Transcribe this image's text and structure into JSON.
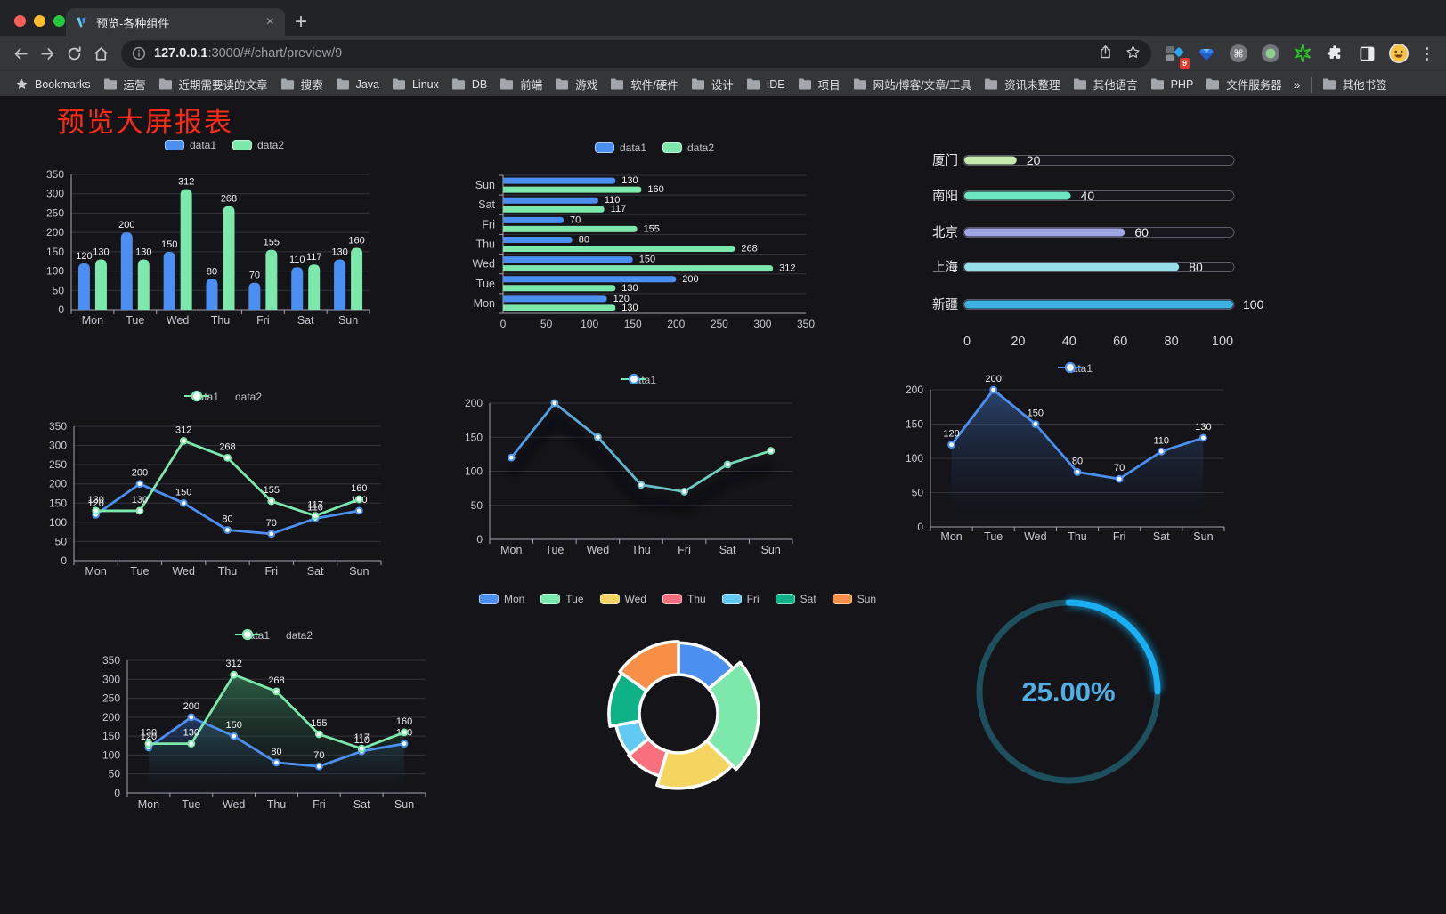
{
  "browser": {
    "traffic_lights": [
      "#ff5f57",
      "#febc2e",
      "#28c840"
    ],
    "tab": {
      "title": "预览-各种组件",
      "close": "×"
    },
    "new_tab": "+",
    "omnibox": {
      "host": "127.0.0.1",
      "path": ":3000/#/chart/preview/9"
    },
    "extensions_badge": "9",
    "bookmarks": {
      "label": "Bookmarks",
      "folders": [
        "运营",
        "近期需要读的文章",
        "搜索",
        "Java",
        "Linux",
        "DB",
        "前端",
        "游戏",
        "软件/硬件",
        "设计",
        "IDE",
        "项目",
        "网站/博客/文章/工具",
        "资讯未整理",
        "其他语言",
        "PHP",
        "文件服务器"
      ],
      "overflow": "»",
      "other": "其他书签"
    }
  },
  "page": {
    "title": "预览大屏报表",
    "title_color": "#fb2b16",
    "background": "#141419"
  },
  "chart_data": [
    {
      "id": "grouped-bar",
      "type": "bar",
      "legend_position": "top",
      "grid": true,
      "value_labels": true,
      "categories": [
        "Mon",
        "Tue",
        "Wed",
        "Thu",
        "Fri",
        "Sat",
        "Sun"
      ],
      "series": [
        {
          "name": "data1",
          "color": "#4b90f0",
          "values": [
            120,
            200,
            150,
            80,
            70,
            110,
            130
          ]
        },
        {
          "name": "data2",
          "color": "#7ce8ab",
          "values": [
            130,
            130,
            312,
            268,
            155,
            117,
            160
          ]
        }
      ],
      "ylim": [
        0,
        350
      ],
      "yticks": [
        0,
        50,
        100,
        150,
        200,
        250,
        300,
        350
      ]
    },
    {
      "id": "horizontal-bar",
      "type": "bar",
      "orientation": "horizontal",
      "legend_position": "top",
      "value_labels": true,
      "categories": [
        "Mon",
        "Tue",
        "Wed",
        "Thu",
        "Fri",
        "Sat",
        "Sun"
      ],
      "display_order": "Sun-first",
      "series": [
        {
          "name": "data1",
          "color": "#4b90f0",
          "values": [
            120,
            200,
            150,
            80,
            70,
            110,
            130
          ]
        },
        {
          "name": "data2",
          "color": "#7ce8ab",
          "values": [
            130,
            130,
            312,
            268,
            155,
            117,
            160
          ]
        }
      ],
      "xlim": [
        0,
        350
      ],
      "xticks": [
        0,
        50,
        100,
        150,
        200,
        250,
        300,
        350
      ]
    },
    {
      "id": "progress-bar-list",
      "type": "bar",
      "subtype": "rounded-progress",
      "value_labels": true,
      "categories": [
        "厦门",
        "南阳",
        "北京",
        "上海",
        "新疆"
      ],
      "values": [
        20,
        40,
        60,
        80,
        100
      ],
      "colors": [
        "#c4ebad",
        "#6be6c1",
        "#a0a7e6",
        "#96dee8",
        "#3fb1e3"
      ],
      "xlim": [
        0,
        100
      ],
      "xticks": [
        0,
        20,
        40,
        60,
        80,
        100
      ]
    },
    {
      "id": "two-line",
      "type": "line",
      "legend_position": "top",
      "grid": true,
      "value_labels": true,
      "categories": [
        "Mon",
        "Tue",
        "Wed",
        "Thu",
        "Fri",
        "Sat",
        "Sun"
      ],
      "series": [
        {
          "name": "data1",
          "color": "#4b90f0",
          "values": [
            120,
            200,
            150,
            80,
            70,
            110,
            130
          ]
        },
        {
          "name": "data2",
          "color": "#7ce8ab",
          "values": [
            130,
            130,
            312,
            268,
            155,
            117,
            160
          ]
        }
      ],
      "ylim": [
        0,
        350
      ],
      "yticks": [
        0,
        50,
        100,
        150,
        200,
        250,
        300,
        350
      ]
    },
    {
      "id": "gradient-line",
      "type": "line",
      "legend_position": "top",
      "grid": true,
      "value_labels": false,
      "categories": [
        "Mon",
        "Tue",
        "Wed",
        "Thu",
        "Fri",
        "Sat",
        "Sun"
      ],
      "series": [
        {
          "name": "data1",
          "gradient": [
            "#4b90f0",
            "#7ce8ab"
          ],
          "values": [
            120,
            200,
            150,
            80,
            70,
            110,
            130
          ]
        }
      ],
      "ylim": [
        0,
        200
      ],
      "yticks": [
        0,
        50,
        100,
        150,
        200
      ]
    },
    {
      "id": "area-line",
      "type": "area",
      "legend_position": "top",
      "grid": true,
      "value_labels": true,
      "categories": [
        "Mon",
        "Tue",
        "Wed",
        "Thu",
        "Fri",
        "Sat",
        "Sun"
      ],
      "series": [
        {
          "name": "data1",
          "color": "#4b90f0",
          "area_top": "rgba(56,100,165,0.60)",
          "area_bottom": "rgba(18,24,38,0.03)",
          "values": [
            120,
            200,
            150,
            80,
            70,
            110,
            130
          ]
        }
      ],
      "ylim": [
        0,
        200
      ],
      "yticks": [
        0,
        50,
        100,
        150,
        200
      ]
    },
    {
      "id": "two-area-line",
      "type": "area",
      "legend_position": "top",
      "grid": true,
      "value_labels": true,
      "categories": [
        "Mon",
        "Tue",
        "Wed",
        "Thu",
        "Fri",
        "Sat",
        "Sun"
      ],
      "series": [
        {
          "name": "data1",
          "color": "#4b90f0",
          "area_top": "rgba(55,105,190,0.45)",
          "area_bottom": "rgba(18,24,38,0.03)",
          "values": [
            120,
            200,
            150,
            80,
            70,
            110,
            130
          ]
        },
        {
          "name": "data2",
          "color": "#7ce8ab",
          "area_top": "rgba(66,160,108,0.55)",
          "area_bottom": "rgba(18,30,24,0.04)",
          "values": [
            130,
            130,
            312,
            268,
            155,
            117,
            160
          ]
        }
      ],
      "ylim": [
        0,
        350
      ],
      "yticks": [
        0,
        50,
        100,
        150,
        200,
        250,
        300,
        350
      ]
    },
    {
      "id": "rose-donut",
      "type": "pie",
      "subtype": "rose-donut",
      "legend_position": "top",
      "categories": [
        "Mon",
        "Tue",
        "Wed",
        "Thu",
        "Fri",
        "Sat",
        "Sun"
      ],
      "values": [
        120,
        200,
        150,
        80,
        70,
        110,
        130
      ],
      "colors": [
        "#4b90f0",
        "#7ce8ab",
        "#f3d55f",
        "#f7707c",
        "#62c9f2",
        "#0fb286",
        "#f79046"
      ]
    },
    {
      "id": "progress-ring",
      "type": "pie",
      "subtype": "gauge-ring",
      "value": 25,
      "label": "25.00%",
      "progress_color": "#19aff2",
      "track_color": "#1d4f5e",
      "text_color": "#4fb0e8"
    }
  ]
}
